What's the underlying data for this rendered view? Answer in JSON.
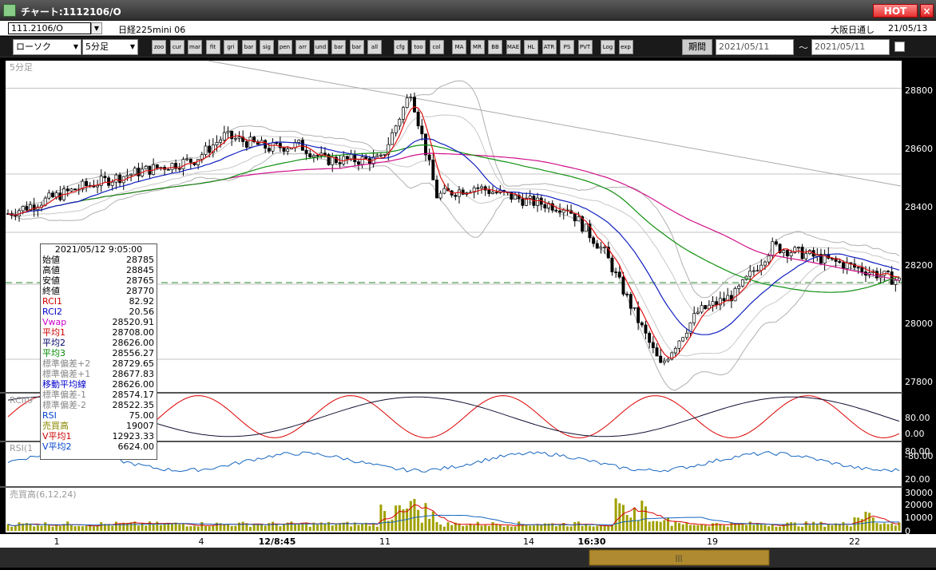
{
  "window": {
    "title": "チャート:1112106/O",
    "hot_label": "HOT",
    "close_label": "×"
  },
  "info_bar": {
    "symbol": "111.2106/O",
    "instrument": "日経225mini 06",
    "market": "大阪日通し",
    "date": "21/05/13"
  },
  "toolbar": {
    "chart_type": "ローソク",
    "interval": "5分足",
    "buttons": [
      "zoom",
      "cursor",
      "mark",
      "fit",
      "grid",
      "bar",
      "sig",
      "pen",
      "arrow",
      "undo",
      "bar1",
      "bar2",
      "all",
      "cfg",
      "tool",
      "color",
      "MA",
      "MR",
      "BB",
      "MAE",
      "HL",
      "ATR",
      "PS",
      "PVT",
      "Log",
      "exp"
    ],
    "period_label": "期間",
    "date_from": "2021/05/11",
    "date_to": "2021/05/11",
    "tilde": "～"
  },
  "main_chart": {
    "label": "5分足",
    "price_axis": [
      "28800",
      "28600",
      "28400",
      "28200",
      "28000",
      "27800"
    ]
  },
  "rci_panel": {
    "label": "RCI(9",
    "axis": [
      "80.00",
      "0.00",
      "-80.00"
    ]
  },
  "rsi_panel": {
    "label": "RSI(1",
    "axis": [
      "80.00",
      "20.00"
    ]
  },
  "volume_panel": {
    "label": "売買高(6,12,24)",
    "axis": [
      "30000",
      "20000",
      "10000",
      "0"
    ]
  },
  "x_axis": [
    "1",
    "4",
    "12/8:45",
    "11",
    "14",
    "16:30",
    "19",
    "22"
  ],
  "info_panel": {
    "datetime": "2021/05/12 9:05:00",
    "rows": [
      {
        "label": "始値",
        "value": "28785",
        "color": "#000000"
      },
      {
        "label": "高値",
        "value": "28845",
        "color": "#000000"
      },
      {
        "label": "安値",
        "value": "28765",
        "color": "#000000"
      },
      {
        "label": "終値",
        "value": "28770",
        "color": "#000000"
      },
      {
        "label": "RCI1",
        "value": "82.92",
        "color": "#cc0000"
      },
      {
        "label": "RCI2",
        "value": "20.56",
        "color": "#0000cc"
      },
      {
        "label": "Vwap",
        "value": "28520.91",
        "color": "#cc00cc"
      },
      {
        "label": "平均1",
        "value": "28708.00",
        "color": "#cc0000"
      },
      {
        "label": "平均2",
        "value": "28626.00",
        "color": "#000066"
      },
      {
        "label": "平均3",
        "value": "28556.27",
        "color": "#008800"
      },
      {
        "label": "標準偏差+2",
        "value": "28729.65",
        "color": "#888888"
      },
      {
        "label": "標準偏差+1",
        "value": "28677.83",
        "color": "#888888"
      },
      {
        "label": "移動平均線",
        "value": "28626.00",
        "color": "#0000cc"
      },
      {
        "label": "標準偏差-1",
        "value": "28574.17",
        "color": "#888888"
      },
      {
        "label": "標準偏差-2",
        "value": "28522.35",
        "color": "#888888"
      },
      {
        "label": "RSI",
        "value": "75.00",
        "color": "#0044cc"
      },
      {
        "label": "売買高",
        "value": "19007",
        "color": "#888800"
      },
      {
        "label": "V平均1",
        "value": "12923.33",
        "color": "#cc0000"
      },
      {
        "label": "V平均2",
        "value": "6624.00",
        "color": "#0044cc"
      }
    ]
  },
  "colors": {
    "background": "#000000",
    "candle_up": "#ffffff",
    "candle_down": "#000000",
    "ma1": "#e01010",
    "ma2": "#1020c0",
    "ma3": "#109010",
    "vwap": "#d0108a",
    "band": "#b0b0b0",
    "volume": "#a0a000"
  }
}
